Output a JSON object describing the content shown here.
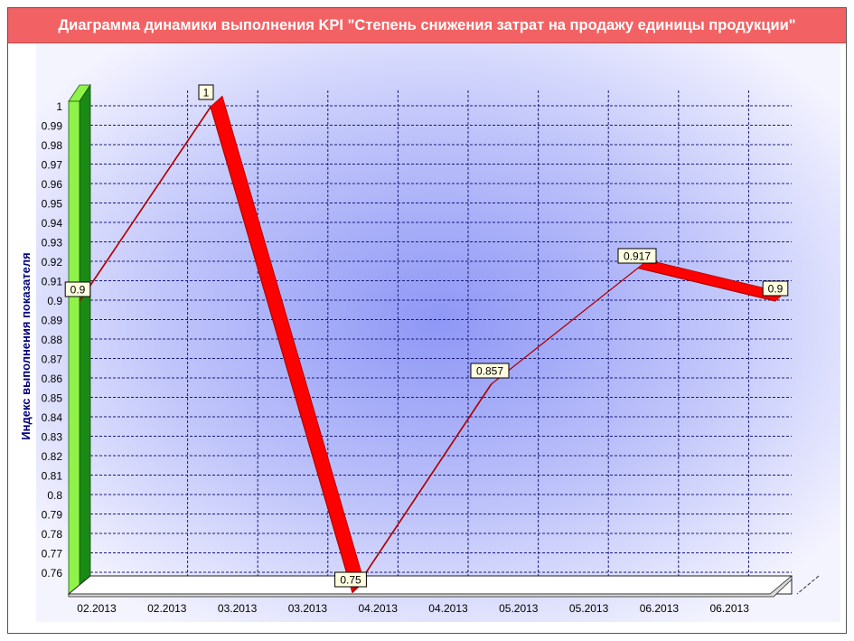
{
  "chart_data": {
    "type": "line",
    "title": "Диаграмма динамики выполнения KPI \"Степень снижения затрат на продажу единицы продукции\"",
    "xlabel": "",
    "ylabel": "Индекс выполнения показателя",
    "ylim": [
      0.75,
      1.0
    ],
    "yticks": [
      1,
      0.99,
      0.98,
      0.97,
      0.96,
      0.95,
      0.94,
      0.93,
      0.92,
      0.91,
      0.9,
      0.89,
      0.88,
      0.87,
      0.86,
      0.85,
      0.84,
      0.83,
      0.82,
      0.81,
      0.8,
      0.79,
      0.78,
      0.77,
      0.76
    ],
    "categories": [
      "02.2013",
      "02.2013",
      "03.2013",
      "03.2013",
      "04.2013",
      "04.2013",
      "05.2013",
      "05.2013",
      "06.2013",
      "06.2013"
    ],
    "points": [
      {
        "label": "0.9",
        "value": 0.9
      },
      {
        "label": "1",
        "value": 1.0
      },
      {
        "label": "0.75",
        "value": 0.75
      },
      {
        "label": "0.857",
        "value": 0.857
      },
      {
        "label": "0.917",
        "value": 0.917
      },
      {
        "label": "0.9",
        "value": 0.9
      }
    ],
    "grid": true,
    "colors": {
      "line": "#ff0000",
      "line_dark": "#b00000",
      "wall_front": "#8ff34a",
      "wall_side": "#1a8a14",
      "grid": "#1a1a80",
      "label_bg": "#ffffe0",
      "title_bg": "#f26264",
      "ylabel": "#000080"
    }
  }
}
